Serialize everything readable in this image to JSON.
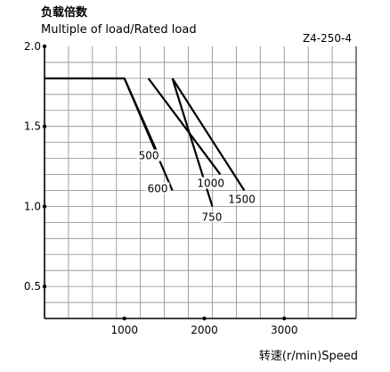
{
  "chart_data": {
    "type": "line",
    "title_cn": "负载倍数",
    "title_en": "Multiple of load/Rated load",
    "code": "Z4-250-4",
    "xlabel": "转速(r/min)Speed",
    "xlim": [
      0,
      3900
    ],
    "ylim": [
      0.3,
      2.0
    ],
    "x_ticks": [
      1000,
      2000,
      3000
    ],
    "x_tick_labels": [
      "1000",
      "2000",
      "3000"
    ],
    "y_ticks": [
      0.5,
      1.0,
      1.5,
      2.0
    ],
    "y_tick_labels": [
      "0.5",
      "1.0",
      "1.5",
      "2.0"
    ],
    "grid": true,
    "series": [
      {
        "name": "500",
        "x": [
          0,
          1000,
          1400
        ],
        "y": [
          1.8,
          1.8,
          1.35
        ]
      },
      {
        "name": "600",
        "x": [
          1000,
          1600
        ],
        "y": [
          1.8,
          1.1
        ]
      },
      {
        "name": "750",
        "x": [
          1600,
          2100
        ],
        "y": [
          1.8,
          1.0
        ]
      },
      {
        "name": "1000",
        "x": [
          1300,
          2200
        ],
        "y": [
          1.8,
          1.2
        ]
      },
      {
        "name": "1500",
        "x": [
          1600,
          2500
        ],
        "y": [
          1.8,
          1.1
        ]
      }
    ]
  }
}
